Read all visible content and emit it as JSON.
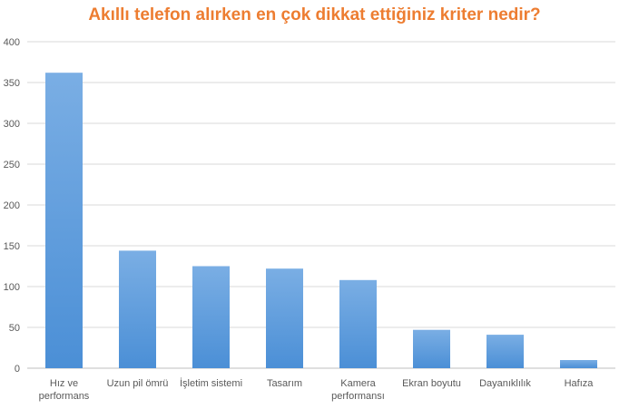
{
  "chart_data": {
    "type": "bar",
    "title": "Akıllı telefon alırken en çok dikkat ettiğiniz kriter nedir?",
    "categories": [
      [
        "Hız ve",
        "performans"
      ],
      [
        "Uzun pil ömrü"
      ],
      [
        "İşletim sistemi"
      ],
      [
        "Tasarım"
      ],
      [
        "Kamera",
        "performansı"
      ],
      [
        "Ekran boyutu"
      ],
      [
        "Dayanıklılık"
      ],
      [
        "Hafıza"
      ]
    ],
    "values": [
      362,
      144,
      125,
      122,
      108,
      47,
      41,
      10
    ],
    "ylim": [
      0,
      400
    ],
    "yticks": [
      0,
      50,
      100,
      150,
      200,
      250,
      300,
      350,
      400
    ],
    "grid": true,
    "colors": {
      "title": "#ed7d31",
      "bar_light": "#7aaee4",
      "bar_dark": "#4b8fd6",
      "grid": "#d9d9d9",
      "axis": "#bfbfbf",
      "text": "#595959"
    }
  }
}
